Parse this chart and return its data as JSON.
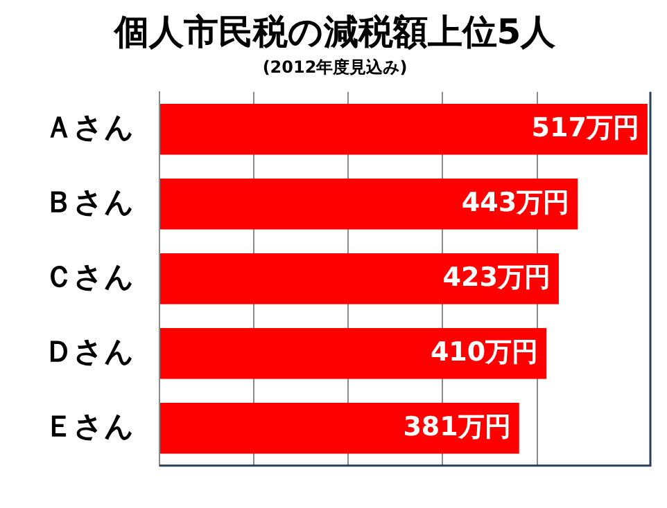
{
  "chart_data": {
    "type": "bar",
    "orientation": "horizontal",
    "title": "個人市民税の減税額上位5人",
    "subtitle": "(2012年度見込み)",
    "categories": [
      "Ａさん",
      "Ｂさん",
      "Ｃさん",
      "Ｄさん",
      "Ｅさん"
    ],
    "values": [
      517,
      443,
      423,
      410,
      381
    ],
    "value_labels": [
      "517万円",
      "443万円",
      "423万円",
      "410万円",
      "381万円"
    ],
    "color": "#ff0000",
    "xlim": [
      0,
      520
    ],
    "grid": "x",
    "legend": false,
    "tick_labels": "y"
  }
}
